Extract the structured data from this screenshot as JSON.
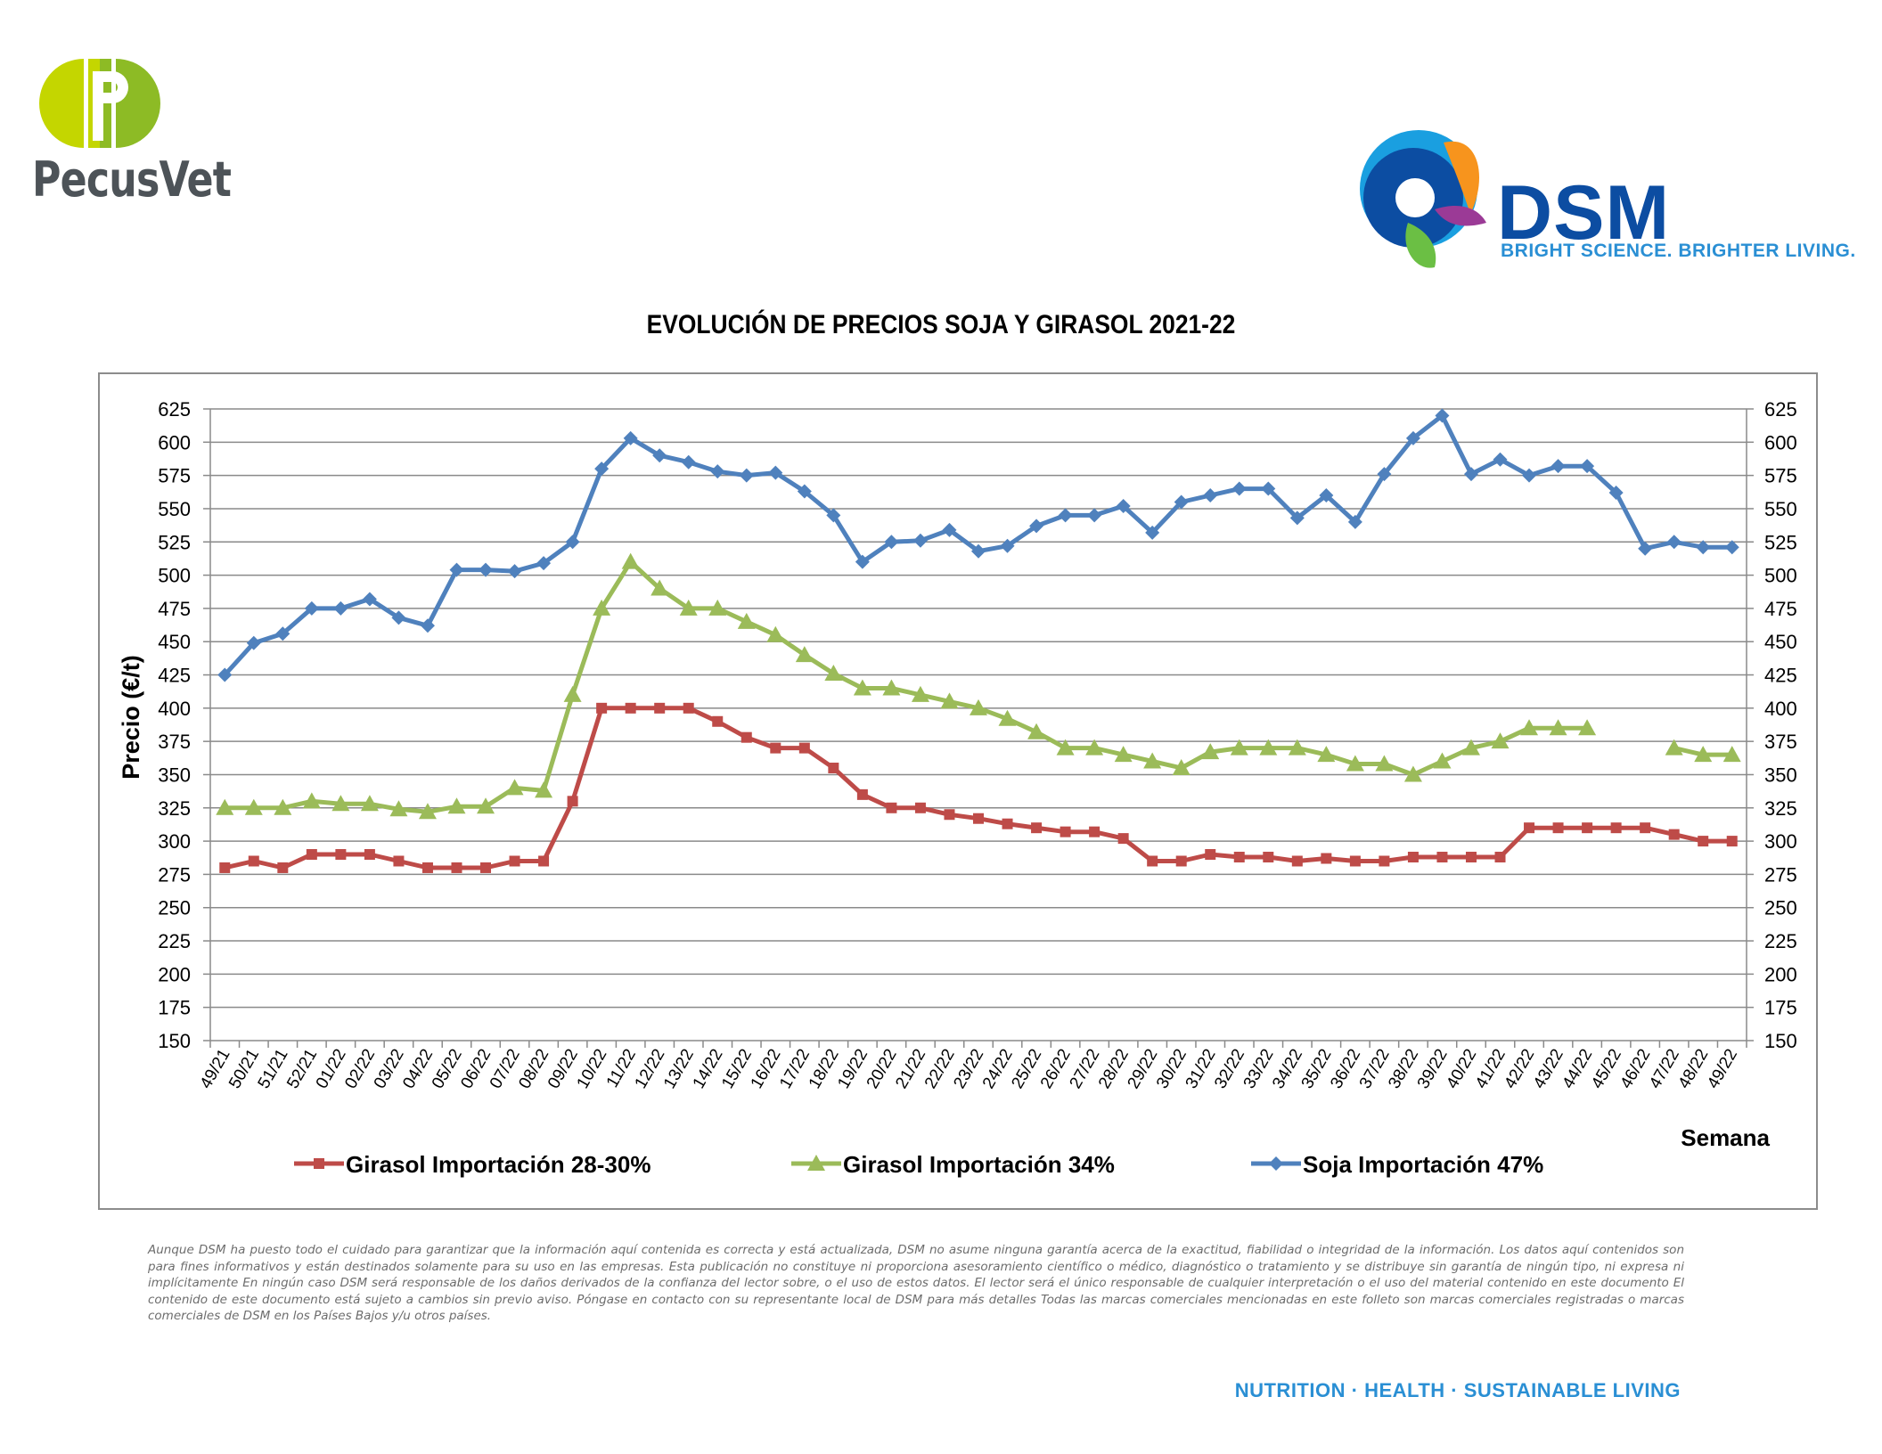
{
  "header": {
    "left_brand": "PecusVet",
    "right_brand": "DSM",
    "right_tagline": "BRIGHT SCIENCE. BRIGHTER LIVING."
  },
  "chart_data": {
    "type": "line",
    "title": "EVOLUCIÓN DE PRECIOS SOJA Y GIRASOL 2021-22",
    "xlabel": "Semana",
    "ylabel": "Precio (€/t)",
    "ylim": [
      150,
      625
    ],
    "ytick_step": 25,
    "secondary_axis": true,
    "grid": true,
    "legend_position": "bottom",
    "categories": [
      "49/21",
      "50/21",
      "51/21",
      "52/21",
      "01/22",
      "02/22",
      "03/22",
      "04/22",
      "05/22",
      "06/22",
      "07/22",
      "08/22",
      "09/22",
      "10/22",
      "11/22",
      "12/22",
      "13/22",
      "14/22",
      "15/22",
      "16/22",
      "17/22",
      "18/22",
      "19/22",
      "20/22",
      "21/22",
      "22/22",
      "23/22",
      "24/22",
      "25/22",
      "26/22",
      "27/22",
      "28/22",
      "29/22",
      "30/22",
      "31/22",
      "32/22",
      "33/22",
      "34/22",
      "35/22",
      "36/22",
      "37/22",
      "38/22",
      "39/22",
      "40/22",
      "41/22",
      "42/22",
      "43/22",
      "44/22",
      "45/22",
      "46/22",
      "47/22",
      "48/22",
      "49/22"
    ],
    "series": [
      {
        "name": "Girasol Importación 28-30%",
        "color": "#be4b48",
        "marker": "square",
        "values": [
          280,
          285,
          280,
          290,
          290,
          290,
          285,
          280,
          280,
          280,
          285,
          285,
          330,
          400,
          400,
          400,
          400,
          390,
          378,
          370,
          370,
          355,
          335,
          325,
          325,
          320,
          317,
          313,
          310,
          307,
          307,
          302,
          285,
          285,
          290,
          288,
          288,
          285,
          287,
          285,
          285,
          288,
          288,
          288,
          288,
          310,
          310,
          310,
          310,
          310,
          305,
          300,
          300
        ]
      },
      {
        "name": "Girasol Importación 34%",
        "color": "#9bbb59",
        "marker": "triangle",
        "values": [
          325,
          325,
          325,
          330,
          328,
          328,
          324,
          322,
          326,
          326,
          340,
          338,
          410,
          475,
          510,
          490,
          475,
          475,
          465,
          455,
          440,
          426,
          415,
          415,
          410,
          405,
          400,
          392,
          382,
          370,
          370,
          365,
          360,
          355,
          367,
          370,
          370,
          370,
          365,
          358,
          358,
          350,
          360,
          370,
          375,
          385,
          385,
          385,
          null,
          null,
          370,
          365,
          365
        ]
      },
      {
        "name": "Soja Importación 47%",
        "color": "#4f81bd",
        "marker": "diamond",
        "values": [
          425,
          449,
          456,
          475,
          475,
          482,
          468,
          462,
          504,
          504,
          503,
          509,
          525,
          580,
          603,
          590,
          585,
          578,
          575,
          577,
          563,
          545,
          510,
          525,
          526,
          534,
          518,
          522,
          537,
          545,
          545,
          552,
          532,
          555,
          560,
          565,
          565,
          543,
          560,
          540,
          576,
          603,
          620,
          576,
          587,
          575,
          582,
          582,
          562,
          520,
          525,
          521,
          521
        ]
      }
    ]
  },
  "disclaimer": "Aunque DSM ha puesto todo el cuidado para garantizar que la información aquí contenida es correcta y está actualizada, DSM no asume ninguna garantía acerca de la exactitud, fiabilidad o integridad de la información. Los datos aquí contenidos son para fines informativos y están destinados solamente para su uso en las empresas. Esta publicación no constituye ni proporciona asesoramiento científico o médico, diagnóstico o tratamiento y se distribuye sin garantía de ningún tipo, ni expresa ni implícitamente En ningún caso DSM será responsable de los daños derivados de la confianza del lector sobre, o el uso de estos datos. El lector será el único responsable de cualquier interpretación o el uso del material contenido en este documento El contenido de este documento está sujeto a cambios sin previo aviso. Póngase en contacto con su representante local de DSM para más detalles Todas las marcas comerciales mencionadas en este folleto son marcas comerciales registradas o marcas comerciales de DSM en los Países Bajos y/u otros países.",
  "footer": {
    "w1": "NUTRITION",
    "w2": "HEALTH",
    "w3": "SUSTAINABLE LIVING",
    "sep": "·"
  }
}
